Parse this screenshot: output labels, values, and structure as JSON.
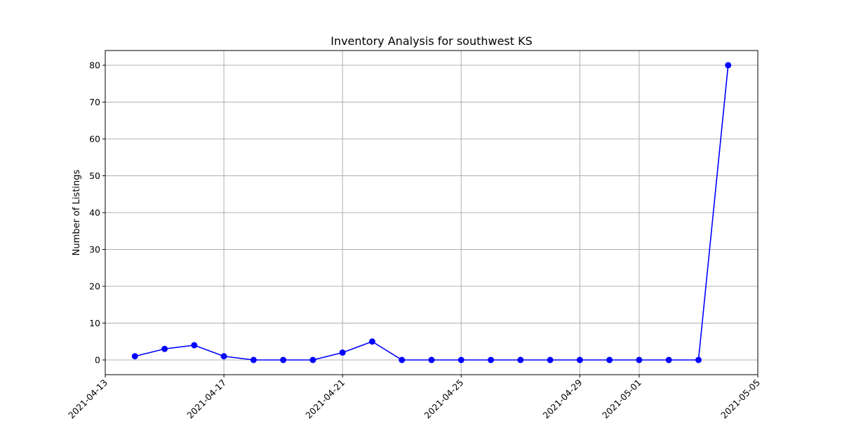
{
  "chart_data": {
    "type": "line",
    "title": "Inventory Analysis for southwest KS",
    "xlabel": "",
    "ylabel": "Number of Listings",
    "x_tick_labels": [
      "2021-04-13",
      "2021-04-17",
      "2021-04-21",
      "2021-04-25",
      "2021-04-29",
      "2021-05-01",
      "2021-05-05"
    ],
    "y_ticks": [
      0,
      10,
      20,
      30,
      40,
      50,
      60,
      70,
      80
    ],
    "xlim": [
      "2021-04-13",
      "2021-05-05"
    ],
    "ylim": [
      -4,
      84
    ],
    "grid": true,
    "series": [
      {
        "color": "#0000ff",
        "marker": "circle",
        "points": [
          {
            "x": "2021-04-14",
            "y": 1
          },
          {
            "x": "2021-04-15",
            "y": 3
          },
          {
            "x": "2021-04-16",
            "y": 4
          },
          {
            "x": "2021-04-17",
            "y": 1
          },
          {
            "x": "2021-04-18",
            "y": 0
          },
          {
            "x": "2021-04-19",
            "y": 0
          },
          {
            "x": "2021-04-20",
            "y": 0
          },
          {
            "x": "2021-04-21",
            "y": 2
          },
          {
            "x": "2021-04-22",
            "y": 5
          },
          {
            "x": "2021-04-23",
            "y": 0
          },
          {
            "x": "2021-04-24",
            "y": 0
          },
          {
            "x": "2021-04-25",
            "y": 0
          },
          {
            "x": "2021-04-26",
            "y": 0
          },
          {
            "x": "2021-04-27",
            "y": 0
          },
          {
            "x": "2021-04-28",
            "y": 0
          },
          {
            "x": "2021-04-29",
            "y": 0
          },
          {
            "x": "2021-04-30",
            "y": 0
          },
          {
            "x": "2021-05-01",
            "y": 0
          },
          {
            "x": "2021-05-02",
            "y": 0
          },
          {
            "x": "2021-05-03",
            "y": 0
          },
          {
            "x": "2021-05-04",
            "y": 80
          }
        ]
      }
    ]
  }
}
